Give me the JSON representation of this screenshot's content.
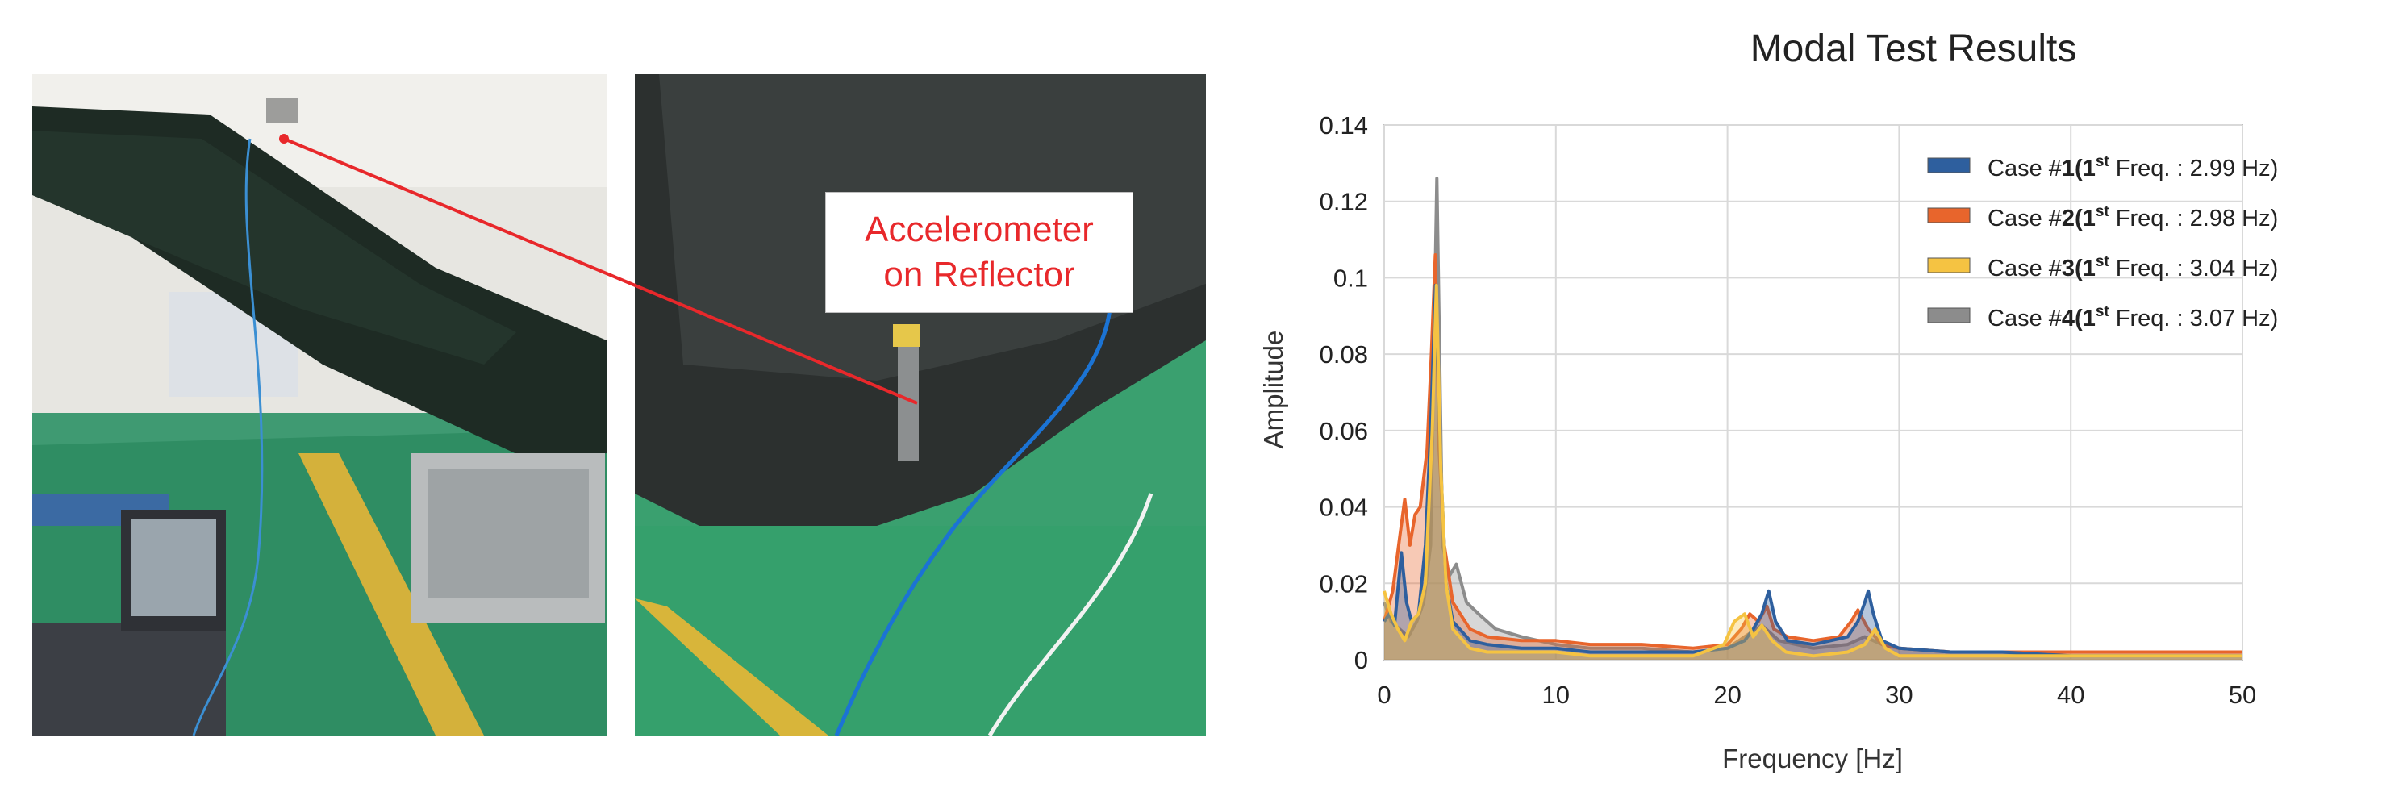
{
  "annotation": {
    "line1": "Accelerometer",
    "line2": "on Reflector"
  },
  "colors": {
    "callout_text": "#e8282b",
    "arrow": "#e8282b"
  },
  "chart_data": {
    "type": "line",
    "title": "Modal Test Results",
    "xlabel": "Frequency [Hz]",
    "ylabel": "Amplitude",
    "xlim": [
      0,
      50
    ],
    "ylim": [
      0,
      0.14
    ],
    "xticks": [
      0,
      10,
      20,
      30,
      40,
      50
    ],
    "yticks": [
      0,
      0.02,
      0.04,
      0.06,
      0.08,
      0.1,
      0.12,
      0.14
    ],
    "ytick_labels": [
      "0",
      "0.02",
      "0.04",
      "0.06",
      "0.08",
      "0.1",
      "0.12",
      "0.14"
    ],
    "grid": true,
    "legend_position": "top-right",
    "series": [
      {
        "name": "Case #1(1st Freq. : 2.99 Hz)",
        "legend_parts": {
          "a": "Case #",
          "b": "1",
          "c": "(1",
          "sup": "st",
          "d": " Freq. : 2.99 Hz)"
        },
        "color": "#2e5f9e",
        "x": [
          0,
          0.3,
          0.6,
          1.0,
          1.3,
          1.6,
          2.0,
          2.4,
          2.7,
          2.99,
          3.3,
          3.6,
          4.0,
          5,
          6,
          8,
          10,
          12,
          15,
          18,
          20,
          21,
          21.5,
          22,
          22.4,
          22.8,
          23.5,
          25,
          27,
          27.6,
          28,
          28.2,
          28.5,
          29,
          30,
          33,
          36,
          40,
          45,
          50
        ],
        "y": [
          0.01,
          0.012,
          0.009,
          0.028,
          0.015,
          0.01,
          0.012,
          0.03,
          0.06,
          0.098,
          0.05,
          0.02,
          0.01,
          0.005,
          0.004,
          0.003,
          0.003,
          0.002,
          0.002,
          0.002,
          0.003,
          0.005,
          0.008,
          0.012,
          0.018,
          0.01,
          0.005,
          0.004,
          0.006,
          0.01,
          0.015,
          0.018,
          0.012,
          0.005,
          0.003,
          0.002,
          0.002,
          0.001,
          0.001,
          0.001
        ]
      },
      {
        "name": "Case #2(1st Freq. : 2.98 Hz)",
        "legend_parts": {
          "a": "Case #",
          "b": "2",
          "c": "(1",
          "sup": "st",
          "d": " Freq. : 2.98 Hz)"
        },
        "color": "#e8652c",
        "x": [
          0,
          0.5,
          0.9,
          1.2,
          1.5,
          1.8,
          2.1,
          2.5,
          2.75,
          2.98,
          3.2,
          3.5,
          4.0,
          5,
          6,
          8,
          10,
          12,
          15,
          18,
          20,
          20.8,
          21.3,
          21.8,
          22.3,
          22.7,
          23.5,
          25,
          26.5,
          27.2,
          27.6,
          28.2,
          29,
          30,
          33,
          36,
          40,
          45,
          50
        ],
        "y": [
          0.01,
          0.018,
          0.032,
          0.042,
          0.03,
          0.038,
          0.04,
          0.055,
          0.08,
          0.106,
          0.055,
          0.03,
          0.015,
          0.008,
          0.006,
          0.005,
          0.005,
          0.004,
          0.004,
          0.003,
          0.004,
          0.008,
          0.012,
          0.01,
          0.014,
          0.008,
          0.006,
          0.005,
          0.006,
          0.01,
          0.013,
          0.008,
          0.004,
          0.003,
          0.002,
          0.002,
          0.002,
          0.002,
          0.002
        ]
      },
      {
        "name": "Case #3(1st Freq. : 3.04 Hz)",
        "legend_parts": {
          "a": "Case #",
          "b": "3",
          "c": "(1",
          "sup": "st",
          "d": " Freq. : 3.04 Hz)"
        },
        "color": "#f5c342",
        "x": [
          0,
          0.4,
          0.8,
          1.2,
          1.6,
          2.0,
          2.4,
          2.8,
          3.04,
          3.3,
          3.6,
          4.0,
          5,
          6,
          8,
          10,
          12,
          15,
          18,
          19.8,
          20.4,
          21,
          21.5,
          22,
          22.6,
          23.4,
          25,
          27,
          28,
          28.6,
          29.2,
          30,
          33,
          36,
          40,
          45,
          50
        ],
        "y": [
          0.018,
          0.012,
          0.008,
          0.005,
          0.01,
          0.012,
          0.02,
          0.06,
          0.098,
          0.05,
          0.02,
          0.008,
          0.003,
          0.002,
          0.002,
          0.002,
          0.001,
          0.001,
          0.001,
          0.004,
          0.01,
          0.012,
          0.006,
          0.009,
          0.005,
          0.002,
          0.001,
          0.002,
          0.004,
          0.008,
          0.003,
          0.001,
          0.001,
          0.001,
          0.001,
          0.001,
          0.001
        ]
      },
      {
        "name": "Case #4(1st Freq. : 3.07 Hz)",
        "legend_parts": {
          "a": "Case #",
          "b": "4",
          "c": "(1",
          "sup": "st",
          "d": " Freq. : 3.07 Hz)"
        },
        "color": "#8c8c8c",
        "x": [
          0,
          0.4,
          0.9,
          1.4,
          1.9,
          2.3,
          2.7,
          3.07,
          3.4,
          3.8,
          4.2,
          4.8,
          5.5,
          6.5,
          8,
          10,
          12,
          15,
          18,
          20,
          21,
          22,
          22.5,
          23,
          24,
          25,
          27,
          28,
          29,
          30,
          33,
          36,
          40,
          45,
          50
        ],
        "y": [
          0.015,
          0.01,
          0.008,
          0.006,
          0.01,
          0.015,
          0.03,
          0.126,
          0.03,
          0.022,
          0.025,
          0.015,
          0.012,
          0.008,
          0.006,
          0.004,
          0.003,
          0.003,
          0.002,
          0.003,
          0.006,
          0.009,
          0.007,
          0.005,
          0.004,
          0.003,
          0.004,
          0.006,
          0.004,
          0.003,
          0.002,
          0.002,
          0.002,
          0.002,
          0.002
        ]
      }
    ]
  }
}
